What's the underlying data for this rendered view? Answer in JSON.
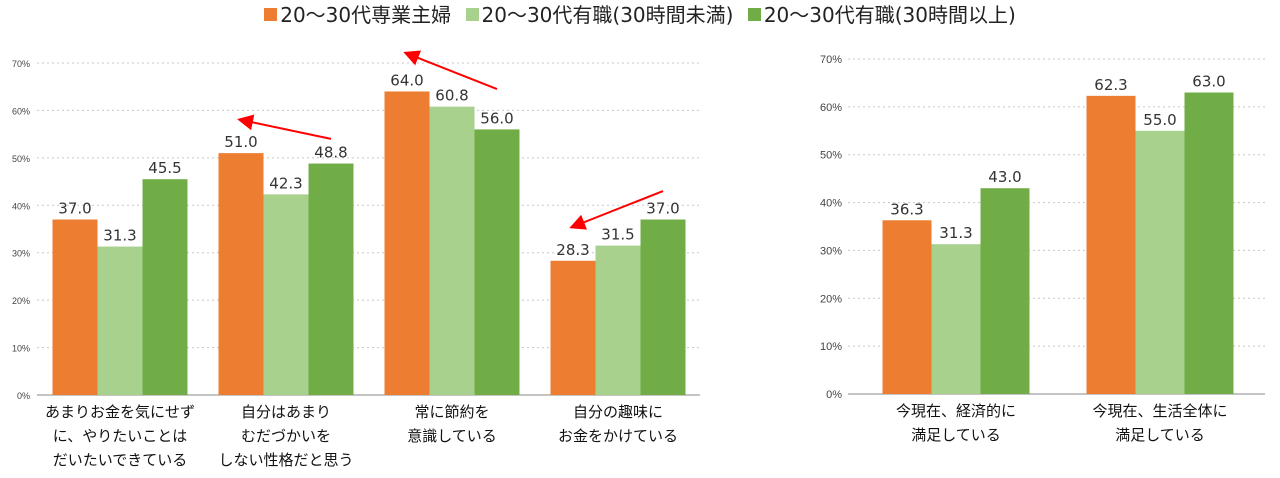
{
  "legend": [
    {
      "label": "20～30代専業主婦",
      "color": "#ed7d31"
    },
    {
      "label": "20～30代有職(30時間未満)",
      "color": "#a9d18e"
    },
    {
      "label": "20～30代有職(30時間以上)",
      "color": "#70ad47"
    }
  ],
  "chart_data": [
    {
      "type": "bar",
      "categories": [
        [
          "あまりお金を気にせず",
          "に、やりたいことは",
          "だいたいできている"
        ],
        [
          "自分はあまり",
          "むだづかいを",
          "しない性格だと思う"
        ],
        [
          "常に節約を",
          "意識している"
        ],
        [
          "自分の趣味に",
          "お金をかけている"
        ]
      ],
      "series": [
        {
          "name": "20～30代専業主婦",
          "values": [
            37.0,
            51.0,
            64.0,
            28.3
          ]
        },
        {
          "name": "20～30代有職(30時間未満)",
          "values": [
            31.3,
            42.3,
            60.8,
            31.5
          ]
        },
        {
          "name": "20～30代有職(30時間以上)",
          "values": [
            45.5,
            48.8,
            56.0,
            37.0
          ]
        }
      ],
      "ylim": [
        0,
        70
      ],
      "yticks": [
        "0%",
        "10%",
        "20%",
        "30%",
        "40%",
        "50%",
        "60%",
        "70%"
      ],
      "grid": true,
      "annotations": [
        {
          "type": "arrow",
          "from": {
            "category": 1,
            "series": 2,
            "value": 54
          },
          "to": {
            "category": 1,
            "series": 0,
            "value": 58
          }
        },
        {
          "type": "arrow",
          "from": {
            "category": 2,
            "series": 2,
            "value": 64.5
          },
          "to": {
            "category": 2,
            "series": 0,
            "value": 72
          }
        },
        {
          "type": "arrow",
          "from": {
            "category": 3,
            "series": 2,
            "value": 43
          },
          "to": {
            "category": 3,
            "series": 0,
            "value": 35.5
          }
        }
      ]
    },
    {
      "type": "bar",
      "categories": [
        [
          "今現在、経済的に",
          "満足している"
        ],
        [
          "今現在、生活全体に",
          "満足している"
        ]
      ],
      "series": [
        {
          "name": "20～30代専業主婦",
          "values": [
            36.3,
            62.3
          ]
        },
        {
          "name": "20～30代有職(30時間未満)",
          "values": [
            31.3,
            55.0
          ]
        },
        {
          "name": "20～30代有職(30時間以上)",
          "values": [
            43.0,
            63.0
          ]
        }
      ],
      "ylim": [
        0,
        70
      ],
      "yticks": [
        "0%",
        "10%",
        "20%",
        "30%",
        "40%",
        "50%",
        "60%",
        "70%"
      ],
      "grid": true
    }
  ]
}
